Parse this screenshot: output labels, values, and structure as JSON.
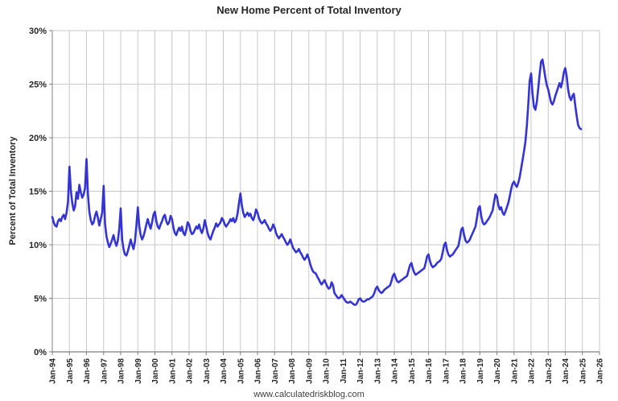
{
  "page": {
    "title": "New Home Percent of Total Inventory",
    "footer": "www.calculatedriskblog.com"
  },
  "chart_data": {
    "type": "line",
    "title": "New Home Percent of Total Inventory",
    "xlabel": "",
    "ylabel": "Percent of Total Inventory",
    "ylim": [
      0,
      30
    ],
    "y_tick_step": 5,
    "y_ticks": [
      "0%",
      "5%",
      "10%",
      "15%",
      "20%",
      "25%",
      "30%"
    ],
    "x_ticks": [
      "Jan-94",
      "Jan-95",
      "Jan-96",
      "Jan-97",
      "Jan-98",
      "Jan-99",
      "Jan-00",
      "Jan-01",
      "Jan-02",
      "Jan-03",
      "Jan-04",
      "Jan-05",
      "Jan-06",
      "Jan-07",
      "Jan-08",
      "Jan-09",
      "Jan-10",
      "Jan-11",
      "Jan-12",
      "Jan-13",
      "Jan-14",
      "Jan-15",
      "Jan-16",
      "Jan-17",
      "Jan-18",
      "Jan-19",
      "Jan-20",
      "Jan-21",
      "Jan-22",
      "Jan-23",
      "Jan-24",
      "Jan-25",
      "Jan-26"
    ],
    "grid": true,
    "legend": "none",
    "colors": {
      "line": "#3434d4",
      "grid": "#c8c8c8",
      "axis": "#7f7f7f",
      "text": "#262626"
    },
    "series": [
      {
        "name": "New Home Percent of Total Inventory",
        "start": "Jan-1994",
        "frequency": "monthly",
        "values": [
          12.6,
          12.1,
          11.8,
          11.7,
          12.2,
          12.4,
          12.2,
          12.6,
          12.8,
          12.4,
          13.0,
          14.0,
          17.3,
          15.1,
          13.9,
          13.2,
          13.6,
          14.9,
          14.3,
          15.6,
          14.9,
          14.4,
          14.7,
          15.3,
          18.0,
          14.7,
          13.1,
          12.3,
          11.9,
          12.1,
          12.7,
          13.1,
          12.5,
          11.8,
          12.4,
          13.0,
          15.5,
          12.0,
          10.8,
          10.2,
          9.8,
          10.1,
          10.5,
          10.9,
          10.3,
          9.9,
          10.4,
          11.5,
          13.4,
          10.5,
          9.6,
          9.1,
          9.0,
          9.4,
          9.9,
          10.5,
          10.0,
          9.6,
          10.3,
          11.8,
          13.5,
          11.8,
          10.9,
          10.5,
          10.8,
          11.3,
          11.9,
          12.4,
          11.9,
          11.5,
          12.1,
          12.8,
          13.1,
          12.2,
          11.7,
          11.5,
          11.9,
          12.2,
          12.6,
          12.8,
          12.2,
          11.9,
          12.1,
          12.7,
          12.4,
          11.6,
          11.1,
          10.9,
          11.3,
          11.6,
          11.3,
          11.7,
          11.1,
          10.9,
          11.4,
          12.1,
          11.9,
          11.3,
          11.0,
          11.1,
          11.4,
          11.7,
          11.5,
          11.9,
          11.4,
          11.1,
          11.5,
          12.3,
          11.7,
          11.1,
          10.7,
          10.5,
          10.9,
          11.3,
          11.6,
          12.0,
          11.7,
          11.9,
          12.1,
          12.5,
          12.3,
          11.9,
          11.7,
          11.9,
          12.1,
          12.4,
          12.2,
          12.5,
          12.1,
          12.3,
          12.9,
          13.9,
          14.8,
          13.7,
          13.0,
          12.6,
          12.8,
          13.0,
          12.7,
          12.9,
          12.5,
          12.3,
          12.7,
          13.3,
          13.0,
          12.5,
          12.2,
          12.0,
          12.1,
          12.3,
          12.0,
          11.8,
          11.5,
          11.3,
          11.5,
          11.9,
          11.6,
          11.1,
          10.8,
          10.6,
          10.8,
          11.0,
          10.7,
          10.5,
          10.2,
          10.0,
          10.2,
          10.5,
          10.1,
          9.7,
          9.5,
          9.3,
          9.4,
          9.6,
          9.3,
          9.1,
          8.8,
          8.6,
          8.8,
          9.1,
          8.7,
          8.2,
          7.8,
          7.5,
          7.4,
          7.3,
          7.0,
          6.8,
          6.5,
          6.3,
          6.5,
          6.7,
          6.4,
          6.1,
          5.9,
          6.0,
          6.5,
          6.2,
          5.5,
          5.3,
          5.1,
          5.0,
          5.1,
          5.3,
          5.1,
          4.9,
          4.7,
          4.6,
          4.6,
          4.7,
          4.6,
          4.5,
          4.4,
          4.4,
          4.6,
          4.9,
          5.0,
          4.8,
          4.7,
          4.7,
          4.8,
          4.9,
          4.9,
          5.0,
          5.1,
          5.2,
          5.5,
          5.9,
          6.1,
          5.8,
          5.6,
          5.5,
          5.6,
          5.8,
          5.9,
          6.0,
          6.1,
          6.2,
          6.6,
          7.1,
          7.3,
          6.9,
          6.6,
          6.5,
          6.6,
          6.7,
          6.8,
          6.9,
          7.0,
          7.1,
          7.6,
          8.1,
          8.3,
          7.8,
          7.4,
          7.2,
          7.3,
          7.4,
          7.5,
          7.6,
          7.7,
          7.8,
          8.3,
          8.9,
          9.1,
          8.5,
          8.1,
          7.9,
          8.0,
          8.1,
          8.3,
          8.4,
          8.5,
          8.7,
          9.3,
          10.0,
          10.2,
          9.5,
          9.1,
          8.9,
          9.0,
          9.1,
          9.3,
          9.5,
          9.7,
          9.9,
          10.6,
          11.4,
          11.6,
          10.9,
          10.4,
          10.2,
          10.3,
          10.5,
          10.8,
          11.1,
          11.4,
          11.7,
          12.5,
          13.4,
          13.6,
          12.7,
          12.1,
          11.9,
          12.0,
          12.2,
          12.4,
          12.6,
          12.9,
          13.2,
          14.0,
          14.7,
          14.5,
          13.7,
          13.3,
          13.5,
          13.0,
          12.8,
          13.1,
          13.5,
          13.9,
          14.5,
          15.2,
          15.7,
          15.9,
          15.6,
          15.4,
          15.8,
          16.3,
          17.1,
          17.9,
          18.7,
          19.6,
          21.1,
          23.1,
          25.3,
          26.0,
          24.1,
          22.9,
          22.6,
          23.3,
          24.6,
          25.9,
          27.1,
          27.3,
          26.5,
          25.6,
          24.9,
          24.5,
          23.9,
          23.3,
          23.1,
          23.4,
          23.9,
          24.3,
          24.7,
          25.1,
          24.7,
          25.3,
          26.1,
          26.5,
          25.7,
          24.5,
          23.8,
          23.5,
          23.9,
          24.1,
          23.0,
          22.0,
          21.2,
          20.9,
          20.8
        ]
      }
    ]
  }
}
